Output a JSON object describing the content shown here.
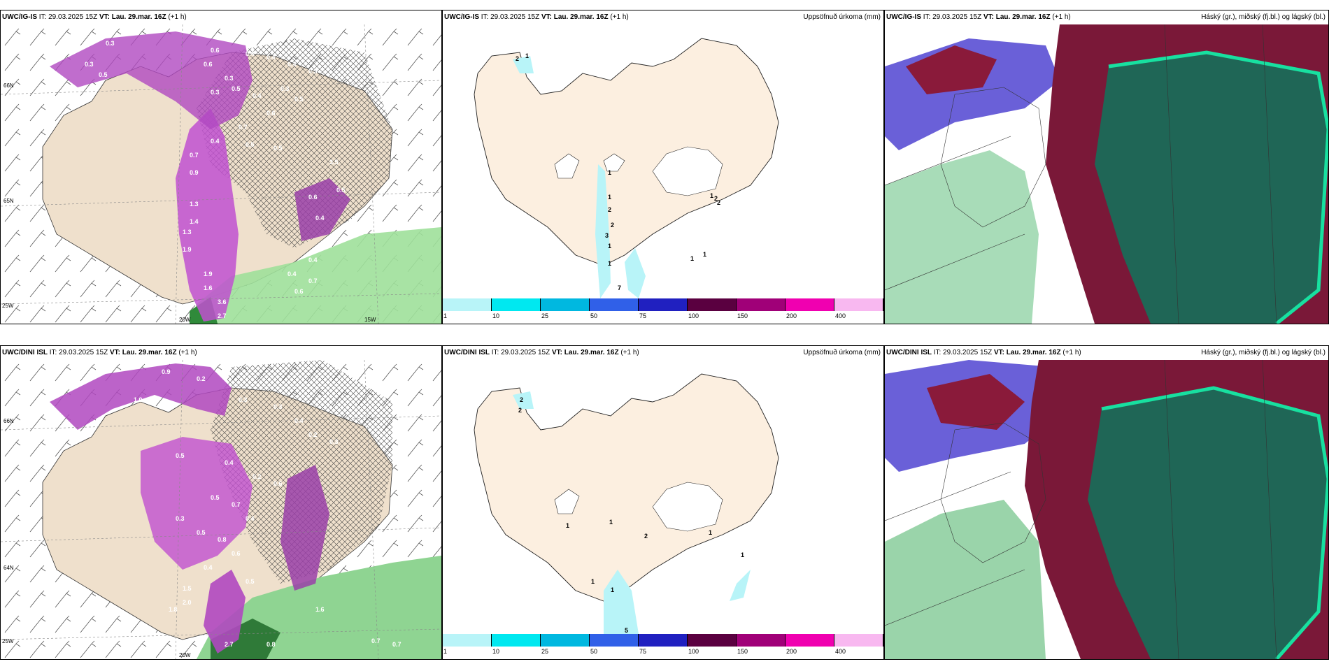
{
  "panels": {
    "top_left": {
      "model": "UWC/IG-IS",
      "it_label": "IT:",
      "it_value": "29.03.2025 15Z",
      "vt_label": "VT: Lau. 29.mar. 16Z",
      "lead": "(+1 h)"
    },
    "top_mid": {
      "model": "UWC/IG-IS",
      "it_label": "IT:",
      "it_value": "29.03.2025 15Z",
      "vt_label": "VT: Lau. 29.mar. 16Z",
      "lead": "(+1 h)",
      "right_title": "Uppsöfnuð úrkoma (mm)"
    },
    "top_right": {
      "model": "UWC/IG-IS",
      "it_label": "IT:",
      "it_value": "29.03.2025 15Z",
      "vt_label": "VT: Lau. 29.mar. 16Z",
      "lead": "(+1 h)",
      "right_title": "Háský (gr.), miðský (fj.bl.) og lágský (bl.)"
    },
    "bot_left": {
      "model": "UWC/DINI ISL",
      "it_label": "IT:",
      "it_value": "29.03.2025 15Z",
      "vt_label": "VT: Lau. 29.mar. 16Z",
      "lead": "(+1 h)"
    },
    "bot_mid": {
      "model": "UWC/DINI ISL",
      "it_label": "IT:",
      "it_value": "29.03.2025 15Z",
      "vt_label": "VT: Lau. 29.mar. 16Z",
      "lead": "(+1 h)",
      "right_title": "Uppsöfnuð úrkoma (mm)"
    },
    "bot_right": {
      "model": "UWC/DINI ISL",
      "it_label": "IT:",
      "it_value": "29.03.2025 15Z",
      "vt_label": "VT: Lau. 29.mar. 16Z",
      "lead": "(+1 h)",
      "right_title": "Háský (gr.), miðský (fj.bl.) og lágský (bl.)"
    }
  },
  "lon_labels": {
    "w20": "20W",
    "w15": "15W",
    "w25": "25W"
  },
  "lat_labels": {
    "n65": "65N",
    "n64": "64N",
    "n66": "66N"
  },
  "colorbar": {
    "ticks": [
      "1",
      "10",
      "25",
      "50",
      "75",
      "100",
      "150",
      "200",
      "400"
    ],
    "colors": [
      "#b8f4f8",
      "#00e8f0",
      "#00b8e0",
      "#3060e8",
      "#2020c0",
      "#5a0040",
      "#a00078",
      "#f000b0",
      "#f8b8f0"
    ]
  },
  "top_left_labels": [
    "0.3",
    "0.3",
    "0.5",
    "0.2",
    "0.6",
    "0.6",
    "0.4",
    "0.4",
    "0.4",
    "0.3",
    "0.3",
    "0.3",
    "0.5",
    "0.4",
    "0.3",
    "0.5",
    "0.6",
    "0.7",
    "0.4",
    "0.5",
    "0.5",
    "0.7",
    "0.9",
    "1.3",
    "1.4",
    "1.3",
    "1.9",
    "1.9",
    "1.6",
    "3.6",
    "2.7",
    "3.5",
    "0.5",
    "0.6",
    "0.4",
    "0.4",
    "0.4",
    "0.7",
    "0.6"
  ],
  "bot_left_labels": [
    "0.9",
    "0.2",
    "1.0",
    "0.3",
    "0.3",
    "0.4",
    "0.2",
    "0.3",
    "0.5",
    "0.4",
    "0.2",
    "0.6",
    "0.5",
    "0.7",
    "0.4",
    "0.3",
    "0.5",
    "0.8",
    "0.6",
    "0.4",
    "0.5",
    "1.5",
    "2.0",
    "1.8",
    "2.7",
    "0.8",
    "0.7",
    "0.7",
    "1.6"
  ],
  "top_mid_labels": [
    "2",
    "1",
    "1",
    "1",
    "2",
    "2",
    "3",
    "1",
    "1",
    "1",
    "2",
    "2",
    "1",
    "1",
    "7"
  ],
  "bot_mid_labels": [
    "2",
    "2",
    "1",
    "1",
    "1",
    "1",
    "2",
    "1",
    "1",
    "5"
  ]
}
